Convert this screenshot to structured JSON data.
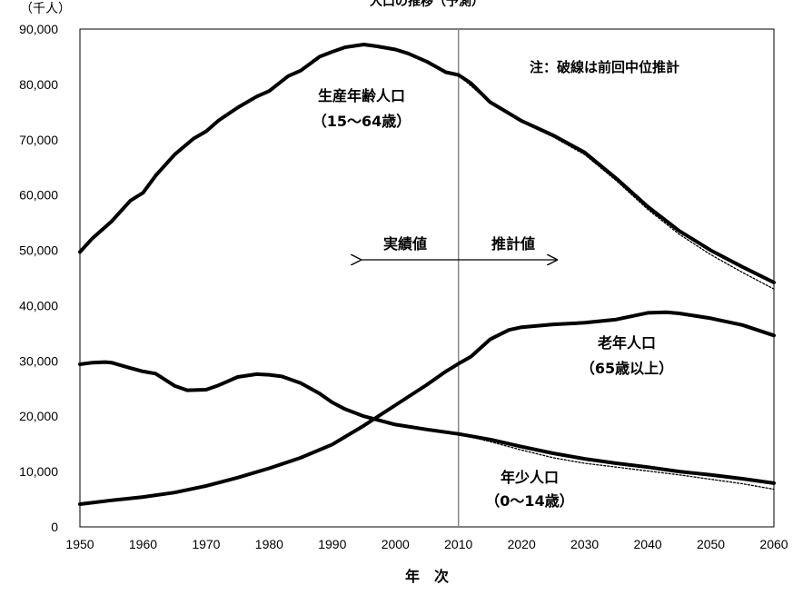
{
  "chart_data": {
    "type": "line",
    "title": "",
    "unit_label": "（千人）",
    "xlabel": "年　次",
    "ylabel": "",
    "xlim": [
      1950,
      2060
    ],
    "ylim": [
      0,
      90000
    ],
    "x_ticks": [
      "1950",
      "1960",
      "1970",
      "1980",
      "1990",
      "2000",
      "2010",
      "2020",
      "2030",
      "2040",
      "2050",
      "2060"
    ],
    "y_ticks": [
      "0",
      "10,000",
      "20,000",
      "30,000",
      "40,000",
      "50,000",
      "60,000",
      "70,000",
      "80,000",
      "90,000"
    ],
    "grid": false,
    "divider_year": 2010,
    "series": [
      {
        "name": "生産年齢人口（15～64歳）",
        "style": "solid",
        "points": [
          [
            1950,
            49700
          ],
          [
            1952,
            52200
          ],
          [
            1955,
            55200
          ],
          [
            1958,
            59000
          ],
          [
            1960,
            60400
          ],
          [
            1962,
            63500
          ],
          [
            1965,
            67300
          ],
          [
            1968,
            70200
          ],
          [
            1970,
            71500
          ],
          [
            1972,
            73500
          ],
          [
            1975,
            75800
          ],
          [
            1978,
            77800
          ],
          [
            1980,
            78800
          ],
          [
            1983,
            81500
          ],
          [
            1985,
            82500
          ],
          [
            1988,
            85000
          ],
          [
            1990,
            85900
          ],
          [
            1992,
            86700
          ],
          [
            1995,
            87200
          ],
          [
            1997,
            86900
          ],
          [
            2000,
            86300
          ],
          [
            2002,
            85600
          ],
          [
            2005,
            84100
          ],
          [
            2008,
            82200
          ],
          [
            2010,
            81700
          ],
          [
            2012,
            80200
          ],
          [
            2015,
            76800
          ],
          [
            2020,
            73400
          ],
          [
            2025,
            70800
          ],
          [
            2030,
            67700
          ],
          [
            2035,
            63000
          ],
          [
            2040,
            57900
          ],
          [
            2045,
            53500
          ],
          [
            2050,
            50000
          ],
          [
            2055,
            47000
          ],
          [
            2060,
            44200
          ]
        ]
      },
      {
        "name": "生産年齢人口（推計・前回中位）",
        "style": "dotted",
        "points": [
          [
            2010,
            81700
          ],
          [
            2015,
            76700
          ],
          [
            2020,
            73200
          ],
          [
            2025,
            70500
          ],
          [
            2030,
            67300
          ],
          [
            2035,
            62600
          ],
          [
            2040,
            57400
          ],
          [
            2045,
            52900
          ],
          [
            2050,
            49200
          ],
          [
            2055,
            46000
          ],
          [
            2060,
            43000
          ]
        ]
      },
      {
        "name": "老年人口（65歳以上）",
        "style": "solid",
        "points": [
          [
            1950,
            4100
          ],
          [
            1955,
            4800
          ],
          [
            1960,
            5400
          ],
          [
            1965,
            6200
          ],
          [
            1970,
            7400
          ],
          [
            1975,
            8900
          ],
          [
            1980,
            10600
          ],
          [
            1985,
            12500
          ],
          [
            1990,
            14900
          ],
          [
            1995,
            18300
          ],
          [
            2000,
            22000
          ],
          [
            2005,
            25700
          ],
          [
            2008,
            28100
          ],
          [
            2010,
            29500
          ],
          [
            2012,
            30800
          ],
          [
            2015,
            33900
          ],
          [
            2018,
            35600
          ],
          [
            2020,
            36100
          ],
          [
            2025,
            36600
          ],
          [
            2030,
            36900
          ],
          [
            2035,
            37500
          ],
          [
            2040,
            38700
          ],
          [
            2043,
            38800
          ],
          [
            2045,
            38600
          ],
          [
            2050,
            37700
          ],
          [
            2055,
            36500
          ],
          [
            2060,
            34600
          ]
        ]
      },
      {
        "name": "年少人口（0～14歳）",
        "style": "solid",
        "points": [
          [
            1950,
            29400
          ],
          [
            1952,
            29700
          ],
          [
            1954,
            29800
          ],
          [
            1955,
            29700
          ],
          [
            1958,
            28700
          ],
          [
            1960,
            28100
          ],
          [
            1962,
            27700
          ],
          [
            1965,
            25500
          ],
          [
            1967,
            24700
          ],
          [
            1970,
            24800
          ],
          [
            1972,
            25600
          ],
          [
            1975,
            27100
          ],
          [
            1978,
            27600
          ],
          [
            1980,
            27500
          ],
          [
            1982,
            27200
          ],
          [
            1985,
            26000
          ],
          [
            1988,
            24100
          ],
          [
            1990,
            22500
          ],
          [
            1992,
            21300
          ],
          [
            1995,
            20000
          ],
          [
            2000,
            18500
          ],
          [
            2005,
            17600
          ],
          [
            2010,
            16800
          ],
          [
            2015,
            15800
          ],
          [
            2020,
            14500
          ],
          [
            2025,
            13300
          ],
          [
            2030,
            12300
          ],
          [
            2035,
            11500
          ],
          [
            2040,
            10800
          ],
          [
            2045,
            10000
          ],
          [
            2050,
            9400
          ],
          [
            2055,
            8700
          ],
          [
            2060,
            7900
          ]
        ]
      },
      {
        "name": "年少人口（推計・前回中位）",
        "style": "dotted",
        "points": [
          [
            2010,
            16800
          ],
          [
            2015,
            15400
          ],
          [
            2020,
            13900
          ],
          [
            2025,
            12500
          ],
          [
            2030,
            11500
          ],
          [
            2035,
            10800
          ],
          [
            2040,
            10100
          ],
          [
            2045,
            9400
          ],
          [
            2050,
            8600
          ],
          [
            2055,
            7800
          ],
          [
            2060,
            6800
          ]
        ]
      }
    ],
    "annotations": {
      "working_age_1": "生産年齢人口",
      "working_age_2": "（15～64歳）",
      "elderly_1": "老年人口",
      "elderly_2": "（65歳以上）",
      "youth_1": "年少人口",
      "youth_2": "（0～14歳）",
      "actual": "実績値",
      "projected": "推計値",
      "note": "注：破線は前回中位推計"
    },
    "title_partial": "人口の推移（予測）"
  }
}
